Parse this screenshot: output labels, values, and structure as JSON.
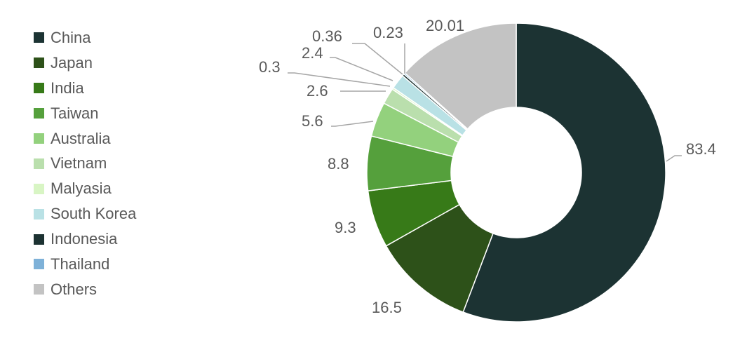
{
  "chart_data": {
    "type": "pie",
    "variant": "donut",
    "title": "",
    "legend_position": "left",
    "series": [
      {
        "categories": [
          "China",
          "Japan",
          "India",
          "Taiwan",
          "Australia",
          "Vietnam",
          "Malyasia",
          "South Korea",
          "Indonesia",
          "Thailand",
          "Others"
        ],
        "values": [
          83.4,
          16.5,
          9.3,
          8.8,
          5.6,
          2.6,
          0.3,
          2.4,
          0.36,
          0.23,
          20.01
        ],
        "labels": [
          "83.4",
          "16.5",
          "9.3",
          "8.8",
          "5.6",
          "2.6",
          "0.3",
          "2.4",
          "0.36",
          "0.23",
          "20.01"
        ],
        "colors": [
          "#1c3333",
          "#2d5119",
          "#377a18",
          "#55a03c",
          "#93d17d",
          "#badfad",
          "#d8f5c4",
          "#b9e1e5",
          "#1c3232",
          "#7eb1d8",
          "#c3c3c3"
        ]
      }
    ]
  }
}
